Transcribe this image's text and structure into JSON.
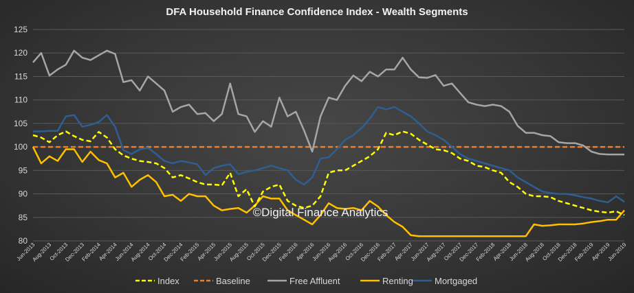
{
  "chart_data": {
    "type": "line",
    "title": "DFA Household Finance Confidence Index - Wealth Segments",
    "watermark": "©Digital Finance Analytics",
    "ylim": [
      80,
      125
    ],
    "yticks": [
      80,
      85,
      90,
      95,
      100,
      105,
      110,
      115,
      120,
      125
    ],
    "grid": true,
    "legend_position": "bottom",
    "x_tick_labels": [
      "Jun-2013",
      "Aug-2013",
      "Oct-2013",
      "Dec-2013",
      "Feb-2014",
      "Apr-2014",
      "Jun-2014",
      "Aug-2014",
      "Oct-2014",
      "Dec-2014",
      "Feb-2015",
      "Apr-2015",
      "Jun-2015",
      "Aug-2015",
      "Oct-2015",
      "Dec-2015",
      "Feb-2016",
      "Apr-2016",
      "Jun-2016",
      "Aug-2016",
      "Oct-2016",
      "Dec-2016",
      "Feb-2017",
      "Apr-2017",
      "Jun-2017",
      "Aug-2017",
      "Oct-2017",
      "Dec-2017",
      "Feb-2018",
      "Apr-2018",
      "Jun-2018",
      "Aug-2018",
      "Oct-2018",
      "Dec-2018",
      "Feb-2019",
      "Apr-2019",
      "Jun-2019"
    ],
    "x": [
      "Jun-2013",
      "Jul-2013",
      "Aug-2013",
      "Sep-2013",
      "Oct-2013",
      "Nov-2013",
      "Dec-2013",
      "Jan-2014",
      "Feb-2014",
      "Mar-2014",
      "Apr-2014",
      "May-2014",
      "Jun-2014",
      "Jul-2014",
      "Aug-2014",
      "Sep-2014",
      "Oct-2014",
      "Nov-2014",
      "Dec-2014",
      "Jan-2015",
      "Feb-2015",
      "Mar-2015",
      "Apr-2015",
      "May-2015",
      "Jun-2015",
      "Jul-2015",
      "Aug-2015",
      "Sep-2015",
      "Oct-2015",
      "Nov-2015",
      "Dec-2015",
      "Jan-2016",
      "Feb-2016",
      "Mar-2016",
      "Apr-2016",
      "May-2016",
      "Jun-2016",
      "Jul-2016",
      "Aug-2016",
      "Sep-2016",
      "Oct-2016",
      "Nov-2016",
      "Dec-2016",
      "Jan-2017",
      "Feb-2017",
      "Mar-2017",
      "Apr-2017",
      "May-2017",
      "Jun-2017",
      "Jul-2017",
      "Aug-2017",
      "Sep-2017",
      "Oct-2017",
      "Nov-2017",
      "Dec-2017",
      "Jan-2018",
      "Feb-2018",
      "Mar-2018",
      "Apr-2018",
      "May-2018",
      "Jun-2018",
      "Jul-2018",
      "Aug-2018",
      "Sep-2018",
      "Oct-2018",
      "Nov-2018",
      "Dec-2018",
      "Jan-2019",
      "Feb-2019",
      "Mar-2019",
      "Apr-2019",
      "May-2019",
      "Jun-2019"
    ],
    "series": [
      {
        "name": "Index",
        "color": "#ffff00",
        "dash": "dashed",
        "width": 2.5,
        "values": [
          102.5,
          102.0,
          101.0,
          102.5,
          103.3,
          102.3,
          101.5,
          101.2,
          103.2,
          102.0,
          99.5,
          98.2,
          97.5,
          97.0,
          96.8,
          96.5,
          95.5,
          93.5,
          94.0,
          93.3,
          92.5,
          92.0,
          92.0,
          91.8,
          94.5,
          89.5,
          91.0,
          87.3,
          90.5,
          91.5,
          92.0,
          88.5,
          87.5,
          87.0,
          87.5,
          89.5,
          94.5,
          95.0,
          95.0,
          96.0,
          97.0,
          98.0,
          99.5,
          103.0,
          102.5,
          103.3,
          102.8,
          101.5,
          100.5,
          99.5,
          99.3,
          98.7,
          97.5,
          97.0,
          96.0,
          95.7,
          95.0,
          94.5,
          92.5,
          91.5,
          90.0,
          89.5,
          89.5,
          89.3,
          88.5,
          88.0,
          87.5,
          87.0,
          86.5,
          86.2,
          86.0,
          86.3,
          85.5
        ]
      },
      {
        "name": "Baseline",
        "color": "#f07d2b",
        "dash": "dashed",
        "width": 2.5,
        "values": [
          100,
          100,
          100,
          100,
          100,
          100,
          100,
          100,
          100,
          100,
          100,
          100,
          100,
          100,
          100,
          100,
          100,
          100,
          100,
          100,
          100,
          100,
          100,
          100,
          100,
          100,
          100,
          100,
          100,
          100,
          100,
          100,
          100,
          100,
          100,
          100,
          100,
          100,
          100,
          100,
          100,
          100,
          100,
          100,
          100,
          100,
          100,
          100,
          100,
          100,
          100,
          100,
          100,
          100,
          100,
          100,
          100,
          100,
          100,
          100,
          100,
          100,
          100,
          100,
          100,
          100,
          100,
          100,
          100,
          100,
          100,
          100,
          100
        ]
      },
      {
        "name": "Free Affluent",
        "color": "#a6a6a6",
        "dash": "solid",
        "width": 2.5,
        "values": [
          118.0,
          120.0,
          115.2,
          116.5,
          117.5,
          120.5,
          119.0,
          118.5,
          119.5,
          120.5,
          119.8,
          113.8,
          114.2,
          112.0,
          115.0,
          113.5,
          112.0,
          107.5,
          108.5,
          109.0,
          107.0,
          107.2,
          105.5,
          107.0,
          113.5,
          107.0,
          106.5,
          103.2,
          105.5,
          104.3,
          110.5,
          106.5,
          107.5,
          103.5,
          99.0,
          106.5,
          110.5,
          110.0,
          113.0,
          115.2,
          114.0,
          116.0,
          115.0,
          116.5,
          116.5,
          119.0,
          116.5,
          114.8,
          114.7,
          115.3,
          113.0,
          113.5,
          111.5,
          109.5,
          109.0,
          108.7,
          109.0,
          108.7,
          107.5,
          104.5,
          103.0,
          103.0,
          102.5,
          102.3,
          101.0,
          100.8,
          100.8,
          100.3,
          99.0,
          98.5,
          98.4,
          98.4,
          98.4
        ]
      },
      {
        "name": "Renting",
        "color": "#ffc000",
        "dash": "solid",
        "width": 2.5,
        "values": [
          100.0,
          96.5,
          98.0,
          97.0,
          99.5,
          99.5,
          96.8,
          99.0,
          97.2,
          96.5,
          93.5,
          94.5,
          91.5,
          93.0,
          94.0,
          92.5,
          89.5,
          89.8,
          88.5,
          90.0,
          89.5,
          89.5,
          87.5,
          86.5,
          86.8,
          87.0,
          86.0,
          87.5,
          89.5,
          89.0,
          89.0,
          86.5,
          85.5,
          84.5,
          83.5,
          85.5,
          88.0,
          87.0,
          86.8,
          87.0,
          86.5,
          88.5,
          87.3,
          85.5,
          84.0,
          83.0,
          81.2,
          81.0,
          81.0,
          81.0,
          81.0,
          81.0,
          81.0,
          81.0,
          81.0,
          81.0,
          81.0,
          81.0,
          81.0,
          81.0,
          81.0,
          83.5,
          83.2,
          83.3,
          83.5,
          83.5,
          83.5,
          83.7,
          84.0,
          84.2,
          84.5,
          84.5,
          86.5
        ]
      },
      {
        "name": "Mortgaged",
        "color": "#2f5e92",
        "dash": "solid",
        "width": 2.5,
        "values": [
          103.3,
          103.3,
          103.4,
          103.4,
          106.5,
          106.8,
          104.3,
          104.7,
          105.3,
          106.8,
          104.3,
          99.3,
          98.5,
          99.5,
          99.8,
          98.5,
          97.0,
          96.5,
          97.0,
          96.7,
          96.3,
          94.0,
          95.5,
          96.0,
          96.3,
          94.2,
          94.7,
          95.0,
          95.5,
          96.0,
          95.5,
          95.0,
          93.0,
          92.0,
          93.5,
          97.5,
          97.8,
          99.5,
          101.5,
          102.5,
          104.0,
          106.0,
          108.5,
          108.0,
          108.5,
          107.5,
          106.5,
          105.0,
          103.3,
          102.5,
          101.5,
          100.0,
          98.5,
          97.5,
          97.0,
          96.5,
          96.0,
          95.5,
          95.0,
          93.5,
          92.5,
          91.5,
          90.5,
          90.2,
          90.0,
          90.0,
          89.7,
          89.3,
          89.0,
          88.5,
          88.2,
          89.5,
          88.3
        ]
      }
    ]
  }
}
